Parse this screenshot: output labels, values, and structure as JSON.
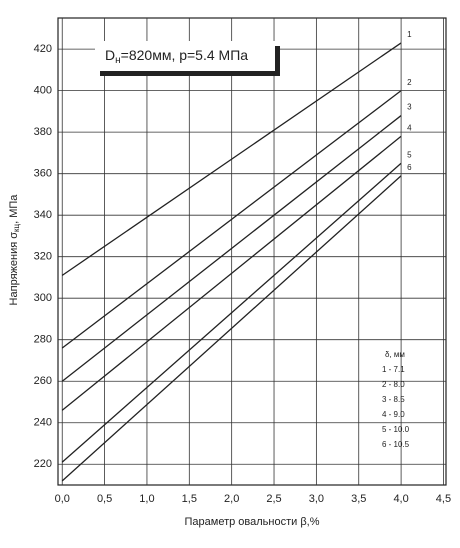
{
  "chart_data": {
    "type": "line",
    "title_parts": [
      "D",
      "н",
      "=820мм,  p=5.4 МПа"
    ],
    "x_label": "Параметр овальности  β,%",
    "y_label_parts": [
      "Напряжения σ",
      "кц",
      ", МПа"
    ],
    "x": [
      0,
      4.0
    ],
    "series": [
      {
        "name": "1",
        "color": "#222",
        "values": [
          311,
          423
        ]
      },
      {
        "name": "2",
        "color": "#222",
        "values": [
          276,
          400
        ]
      },
      {
        "name": "3",
        "color": "#222",
        "values": [
          260,
          388
        ]
      },
      {
        "name": "4",
        "color": "#222",
        "values": [
          246,
          378
        ]
      },
      {
        "name": "5",
        "color": "#222",
        "values": [
          221,
          365
        ]
      },
      {
        "name": "6",
        "color": "#222",
        "values": [
          212,
          359
        ]
      }
    ],
    "legend": {
      "title": "δ, мм",
      "items": [
        "1 - 7.1",
        "2 - 8.0",
        "3 - 8.5",
        "4 - 9.0",
        "5 - 10.0",
        "6 - 10.5"
      ]
    },
    "xlim": [
      -0.05,
      4.53
    ],
    "ylim": [
      210,
      435
    ],
    "xticks": [
      {
        "value": 0,
        "label": "0,0"
      },
      {
        "value": 0.5,
        "label": "0,5"
      },
      {
        "value": 1,
        "label": "1,0"
      },
      {
        "value": 1.5,
        "label": "1,5"
      },
      {
        "value": 2,
        "label": "2,0"
      },
      {
        "value": 2.5,
        "label": "2,5"
      },
      {
        "value": 3,
        "label": "3,0"
      },
      {
        "value": 3.5,
        "label": "3,5"
      },
      {
        "value": 4,
        "label": "4,0"
      },
      {
        "value": 4.5,
        "label": "4,5"
      }
    ],
    "yticks": [
      220,
      240,
      260,
      280,
      300,
      320,
      340,
      360,
      380,
      400,
      420
    ],
    "grid": true
  }
}
